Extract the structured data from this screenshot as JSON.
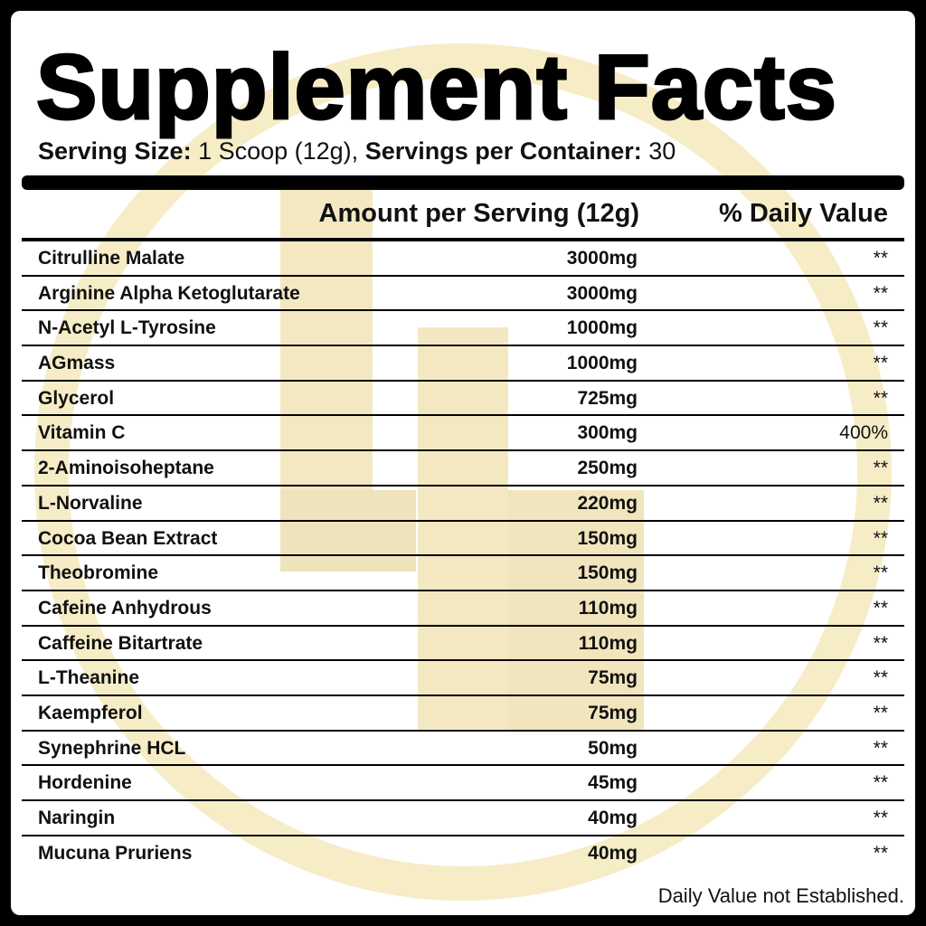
{
  "title": "Supplement Facts",
  "serving": {
    "size_label": "Serving Size:",
    "size_value": " 1 Scoop (12g), ",
    "per_container_label": "Servings per Container:",
    "per_container_value": " 30"
  },
  "columns": {
    "amount": "Amount per Serving (12g)",
    "daily_value": "% Daily Value"
  },
  "rows": [
    {
      "name": "Citrulline Malate",
      "amount": "3000mg",
      "dv": "**"
    },
    {
      "name": "Arginine Alpha Ketoglutarate",
      "amount": "3000mg",
      "dv": "**"
    },
    {
      "name": "N-Acetyl L-Tyrosine",
      "amount": "1000mg",
      "dv": "**"
    },
    {
      "name": "AGmass",
      "amount": "1000mg",
      "dv": "**"
    },
    {
      "name": "Glycerol",
      "amount": "725mg",
      "dv": "**"
    },
    {
      "name": "Vitamin C",
      "amount": "300mg",
      "dv": "400%"
    },
    {
      "name": "2-Aminoisoheptane",
      "amount": "250mg",
      "dv": "**"
    },
    {
      "name": "L-Norvaline",
      "amount": "220mg",
      "dv": "**"
    },
    {
      "name": "Cocoa Bean Extract",
      "amount": "150mg",
      "dv": "**"
    },
    {
      "name": "Theobromine",
      "amount": "150mg",
      "dv": "**"
    },
    {
      "name": "Cafeine Anhydrous",
      "amount": "110mg",
      "dv": "**"
    },
    {
      "name": "Caffeine Bitartrate",
      "amount": "110mg",
      "dv": "**"
    },
    {
      "name": "L-Theanine",
      "amount": "75mg",
      "dv": "**"
    },
    {
      "name": "Kaempferol",
      "amount": "75mg",
      "dv": "**"
    },
    {
      "name": "Synephrine HCL",
      "amount": "50mg",
      "dv": "**"
    },
    {
      "name": "Hordenine",
      "amount": "45mg",
      "dv": "**"
    },
    {
      "name": "Naringin",
      "amount": "40mg",
      "dv": "**"
    },
    {
      "name": "Mucuna Pruriens",
      "amount": "40mg",
      "dv": "**"
    }
  ],
  "footnote": "Daily Value not Established.",
  "colors": {
    "watermark": "#f6ecc6",
    "frame": "#000000"
  }
}
